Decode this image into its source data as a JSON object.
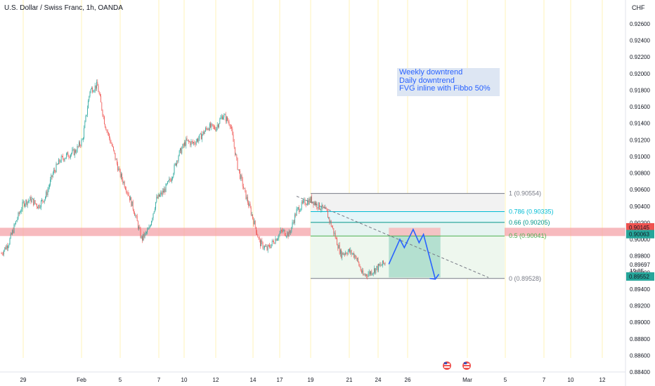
{
  "header": {
    "title": "U.S. Dollar / Swiss Franc, 1h, OANDA",
    "currency": "CHF"
  },
  "annotation": {
    "lines": [
      "Weekly downtrend",
      "Daily downtrend",
      "FVG inline with Fibbo 50%"
    ]
  },
  "colors": {
    "up": "#26a69a",
    "down": "#ef5350",
    "accent": "#2962ff",
    "zone": "#f4a3a8",
    "grid": "#fff3b8",
    "fib_786": "#00bcd4",
    "fib_66": "#009688",
    "fib_5": "#4caf50"
  },
  "chart_data": {
    "type": "candlestick",
    "title": "U.S. Dollar / Swiss Franc, 1h, OANDA",
    "y_axis": {
      "unit": "CHF",
      "ticks": [
        "0.92600",
        "0.92400",
        "0.92200",
        "0.92000",
        "0.91800",
        "0.91600",
        "0.91400",
        "0.91200",
        "0.91000",
        "0.90800",
        "0.90600",
        "0.90400",
        "0.90200",
        "0.90000",
        "0.89800",
        "0.89600",
        "0.89400",
        "0.89200",
        "0.89000",
        "0.88800",
        "0.88600",
        "0.88400"
      ],
      "range": [
        0.8838,
        0.9278
      ]
    },
    "x_axis": {
      "ticks": [
        "29",
        "Feb",
        "5",
        "7",
        "10",
        "12",
        "14",
        "17",
        "19",
        "21",
        "24",
        "26",
        "Mar",
        "5",
        "7",
        "10",
        "12"
      ]
    },
    "price_labels": [
      {
        "value": 0.90145,
        "label": "0.90145",
        "color": "#ef5350"
      },
      {
        "value": 0.90063,
        "label": "0.90063",
        "color": "#26a69a"
      },
      {
        "value": 0.89697,
        "label": "0.89697",
        "color": ""
      },
      {
        "value": 0.89552,
        "label": "0.89552",
        "color": "#26a69a"
      }
    ],
    "countdown": "19:05",
    "fib_levels": [
      {
        "ratio": "1",
        "value": 0.90554,
        "label": "1 (0.90554)"
      },
      {
        "ratio": "0.786",
        "value": 0.90335,
        "label": "0.786 (0.90335)"
      },
      {
        "ratio": "0.66",
        "value": 0.90205,
        "label": "0.66 (0.90205)"
      },
      {
        "ratio": "0.5",
        "value": 0.90041,
        "label": "0.5 (0.90041)"
      },
      {
        "ratio": "0",
        "value": 0.89528,
        "label": "0 (0.89528)"
      }
    ],
    "resistance_zone": [
      0.9004,
      0.9014
    ],
    "price_path": [
      {
        "x": 0,
        "y": 0.8983
      },
      {
        "x": 1,
        "y": 0.8996
      },
      {
        "x": 2,
        "y": 0.9022
      },
      {
        "x": 3,
        "y": 0.9044
      },
      {
        "x": 4,
        "y": 0.9048
      },
      {
        "x": 5,
        "y": 0.904
      },
      {
        "x": 6,
        "y": 0.9052
      },
      {
        "x": 7,
        "y": 0.908
      },
      {
        "x": 8,
        "y": 0.9096
      },
      {
        "x": 9,
        "y": 0.9102
      },
      {
        "x": 10,
        "y": 0.9106
      },
      {
        "x": 11,
        "y": 0.912
      },
      {
        "x": 12,
        "y": 0.918
      },
      {
        "x": 13,
        "y": 0.9186
      },
      {
        "x": 14,
        "y": 0.914
      },
      {
        "x": 15,
        "y": 0.9112
      },
      {
        "x": 16,
        "y": 0.908
      },
      {
        "x": 17,
        "y": 0.906
      },
      {
        "x": 18,
        "y": 0.9034
      },
      {
        "x": 19,
        "y": 0.9
      },
      {
        "x": 20,
        "y": 0.9012
      },
      {
        "x": 21,
        "y": 0.9048
      },
      {
        "x": 22,
        "y": 0.9058
      },
      {
        "x": 23,
        "y": 0.9074
      },
      {
        "x": 24,
        "y": 0.9102
      },
      {
        "x": 25,
        "y": 0.9118
      },
      {
        "x": 26,
        "y": 0.9116
      },
      {
        "x": 27,
        "y": 0.9124
      },
      {
        "x": 28,
        "y": 0.9136
      },
      {
        "x": 29,
        "y": 0.9134
      },
      {
        "x": 30,
        "y": 0.915
      },
      {
        "x": 31,
        "y": 0.914
      },
      {
        "x": 32,
        "y": 0.9088
      },
      {
        "x": 33,
        "y": 0.9056
      },
      {
        "x": 34,
        "y": 0.9028
      },
      {
        "x": 35,
        "y": 0.8996
      },
      {
        "x": 36,
        "y": 0.8988
      },
      {
        "x": 37,
        "y": 0.8999
      },
      {
        "x": 38,
        "y": 0.901
      },
      {
        "x": 39,
        "y": 0.9006
      },
      {
        "x": 40,
        "y": 0.9034
      },
      {
        "x": 41,
        "y": 0.9044
      },
      {
        "x": 42,
        "y": 0.9048
      },
      {
        "x": 43,
        "y": 0.904
      },
      {
        "x": 44,
        "y": 0.9034
      },
      {
        "x": 45,
        "y": 0.901
      },
      {
        "x": 46,
        "y": 0.8982
      },
      {
        "x": 47,
        "y": 0.8986
      },
      {
        "x": 48,
        "y": 0.898
      },
      {
        "x": 49,
        "y": 0.8956
      },
      {
        "x": 50,
        "y": 0.896
      },
      {
        "x": 51,
        "y": 0.8966
      },
      {
        "x": 52,
        "y": 0.8972
      }
    ],
    "projection": [
      {
        "x": 52.5,
        "y": 0.897
      },
      {
        "x": 54.0,
        "y": 0.9
      },
      {
        "x": 54.6,
        "y": 0.899
      },
      {
        "x": 55.8,
        "y": 0.9012
      },
      {
        "x": 56.6,
        "y": 0.8996
      },
      {
        "x": 57.2,
        "y": 0.9006
      },
      {
        "x": 58.8,
        "y": 0.8952
      }
    ],
    "trendline": [
      {
        "x": 40,
        "y": 0.9052
      },
      {
        "x": 66,
        "y": 0.8954
      }
    ],
    "position_box": {
      "x_start": 52.5,
      "x_end": 59.5,
      "top": 0.9014,
      "entry": 0.9004,
      "bottom": 0.8954
    }
  }
}
